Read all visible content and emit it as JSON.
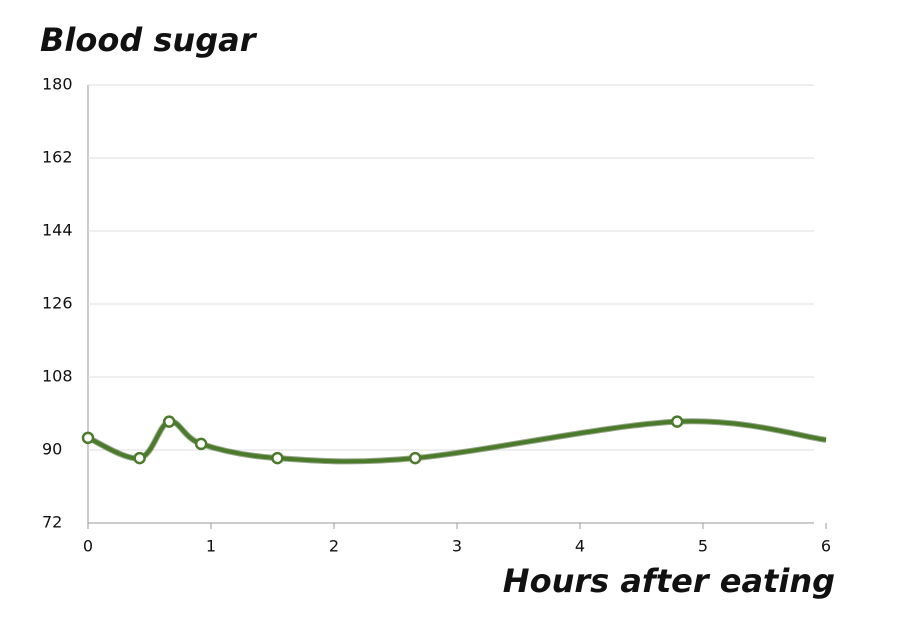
{
  "chart_data": {
    "type": "line",
    "title": "Blood sugar",
    "x_label": "Hours after eating",
    "x": [
      0,
      0.42,
      0.66,
      0.92,
      1.54,
      2.66,
      4.79,
      6
    ],
    "series": [
      {
        "name": "Blood sugar",
        "color": "#4a7a2a",
        "values": [
          93,
          88,
          97,
          91.5,
          88,
          88,
          97,
          92.5
        ]
      }
    ],
    "xlim": [
      0,
      6
    ],
    "xticks": [
      0,
      1,
      2,
      3,
      4,
      5,
      6
    ],
    "ylim": [
      72,
      180
    ],
    "yticks": [
      72,
      90,
      108,
      126,
      144,
      162,
      180
    ],
    "grid": true,
    "smooth": true
  }
}
